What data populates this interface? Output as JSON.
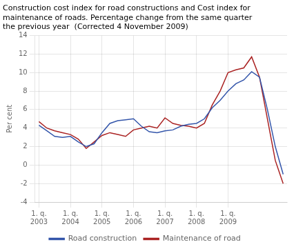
{
  "chart_data": {
    "type": "line",
    "title": "Construction cost index for road constructions and Cost index for\nmaintenance of roads. Percentage change from the same quarter\nthe previous year  (Corrected 4 November 2009)",
    "ylabel": "Per cent",
    "categories": [
      "1. q.\n2003",
      null,
      null,
      null,
      "1. q.\n2004",
      null,
      null,
      null,
      "1. q.\n2005",
      null,
      null,
      null,
      "1. q.\n2006",
      null,
      null,
      null,
      "1. q.\n2007",
      null,
      null,
      null,
      "1. q.\n2008",
      null,
      null,
      null,
      "1. q.\n2009",
      null,
      null,
      null,
      null,
      null,
      null,
      null
    ],
    "series": [
      {
        "name": "Road construction",
        "color": "#3355aa",
        "values": [
          4.3,
          3.7,
          3.1,
          3.0,
          3.1,
          2.5,
          2.0,
          2.3,
          3.5,
          4.5,
          4.8,
          4.9,
          5.0,
          4.2,
          3.6,
          3.5,
          3.7,
          3.8,
          4.2,
          4.4,
          4.5,
          5.0,
          6.2,
          7.0,
          8.0,
          8.8,
          9.2,
          10.1,
          9.5,
          6.0,
          2.0,
          -1.0
        ]
      },
      {
        "name": "Maintenance of road",
        "color": "#aa2222",
        "values": [
          4.7,
          4.0,
          3.7,
          3.5,
          3.3,
          2.8,
          1.8,
          2.5,
          3.2,
          3.5,
          3.3,
          3.1,
          3.8,
          4.0,
          4.2,
          4.0,
          5.1,
          4.5,
          4.3,
          4.2,
          4.0,
          4.5,
          6.5,
          8.0,
          10.0,
          10.3,
          10.5,
          11.7,
          9.5,
          5.0,
          0.5,
          -2.0
        ]
      }
    ],
    "ylim": [
      -4,
      14
    ],
    "yticks": [
      -4,
      -2,
      0,
      2,
      4,
      6,
      8,
      10,
      12,
      14
    ],
    "grid": true,
    "legend": "bottom"
  }
}
